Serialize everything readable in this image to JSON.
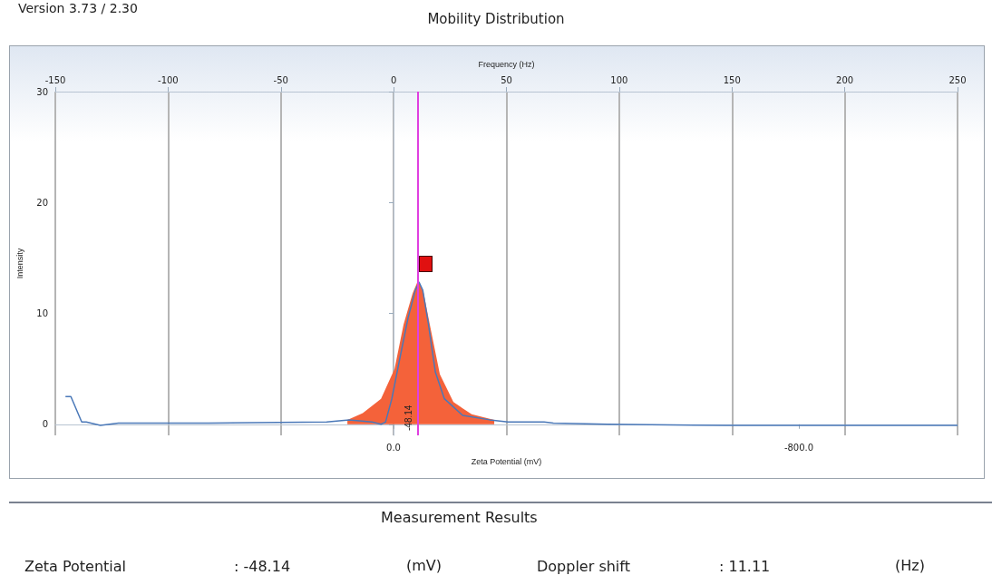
{
  "chart_data": {
    "type": "line",
    "title": "Mobility Distribution",
    "xlabel": "Zeta Potential (mV)",
    "x2label": "Frequency (Hz)",
    "ylabel": "Intensity",
    "xlim": [
      667.6,
      -1113.2
    ],
    "xticks": [
      {
        "value": 0,
        "label": "0.0"
      },
      {
        "value": -800,
        "label": "-800.0"
      }
    ],
    "x2lim": [
      -150,
      250
    ],
    "x2ticks": [
      -150,
      -100,
      -50,
      0,
      50,
      100,
      150,
      200,
      250
    ],
    "ylim": [
      -1,
      30
    ],
    "yticks": [
      0,
      10,
      20,
      30
    ],
    "grid": "x",
    "marker": "none",
    "line_style": "solid",
    "series": [
      {
        "type": "area",
        "axis": "x2",
        "color": "#f4623a",
        "x": [
          -20.5,
          -13.7,
          -5.6,
          0.4,
          4.4,
          8.4,
          10.9,
          13.3,
          16.5,
          20.5,
          26.5,
          34.6,
          44.6
        ],
        "values": [
          0.4,
          1.0,
          2.3,
          5.0,
          9.0,
          11.8,
          13.0,
          11.8,
          8.5,
          4.5,
          2.0,
          0.9,
          0.4
        ]
      },
      {
        "type": "line",
        "axis": "x2",
        "color": "#4a78b8",
        "x": [
          -145.5,
          -143.1,
          -138.3,
          -136.3,
          -130,
          -122,
          -82,
          -29.7,
          -19.7,
          -9.6,
          -5.6,
          -3.6,
          -0.8,
          2.4,
          6.4,
          9.6,
          11.3,
          12.9,
          15.3,
          18.5,
          22.5,
          30.6,
          42.6,
          50.7,
          66.7,
          70.8,
          94.9,
          147,
          250
        ],
        "values": [
          2.5,
          2.5,
          0.2,
          0.2,
          -0.1,
          0.1,
          0.1,
          0.2,
          0.4,
          0.2,
          0,
          0.2,
          2.3,
          5.6,
          9.6,
          12.1,
          12.8,
          12.1,
          9.2,
          4.7,
          2.3,
          0.8,
          0.4,
          0.2,
          0.2,
          0.1,
          0,
          -0.1,
          -0.1
        ]
      }
    ],
    "ref_lines": [
      {
        "axis": "x",
        "value": -48.14,
        "label": "-48.14",
        "color": "#e040e0"
      }
    ],
    "annotations": [
      "Version 3.73 / 2.30",
      "Measurement Results",
      "Zeta Potential",
      ": -48.14",
      "(mV)",
      "Doppler shift",
      ": 11.11",
      "(Hz)"
    ]
  }
}
